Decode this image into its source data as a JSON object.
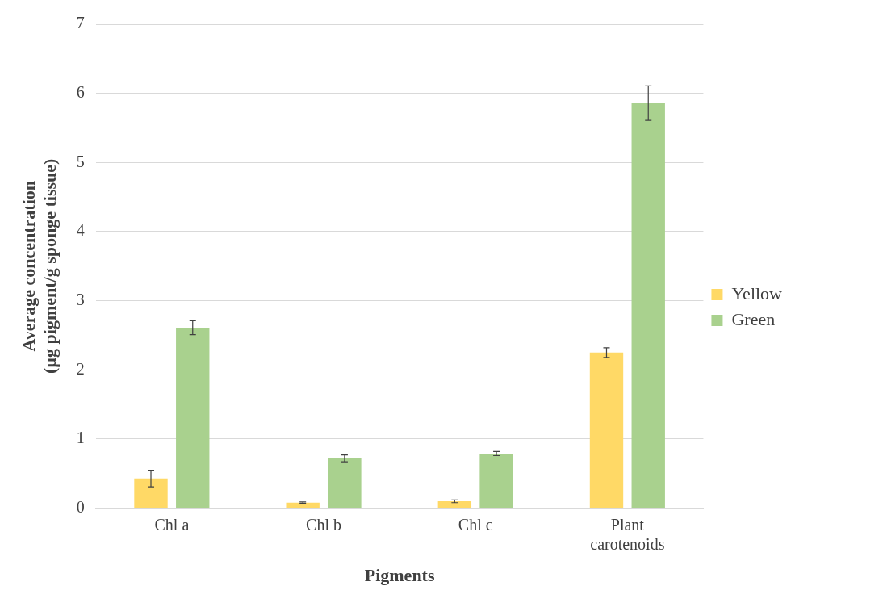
{
  "chart_data": {
    "type": "bar",
    "xlabel": "Pigments",
    "ylabel": "Average concentration\n(µg pigment/g sponge tissue)",
    "categories": [
      "Chl a",
      "Chl b",
      "Chl c",
      "Plant\ncarotenoids"
    ],
    "series": [
      {
        "name": "Yellow",
        "color": "#ffd966",
        "values": [
          0.43,
          0.08,
          0.1,
          2.25
        ],
        "errors": [
          0.12,
          0.01,
          0.02,
          0.07
        ]
      },
      {
        "name": "Green",
        "color": "#a9d18e",
        "values": [
          2.61,
          0.72,
          0.79,
          5.86
        ],
        "errors": [
          0.1,
          0.05,
          0.03,
          0.25
        ]
      }
    ],
    "ylim": [
      0,
      7
    ],
    "yticks": [
      0,
      1,
      2,
      3,
      4,
      5,
      6,
      7
    ],
    "grid": "y",
    "legend": "right"
  }
}
